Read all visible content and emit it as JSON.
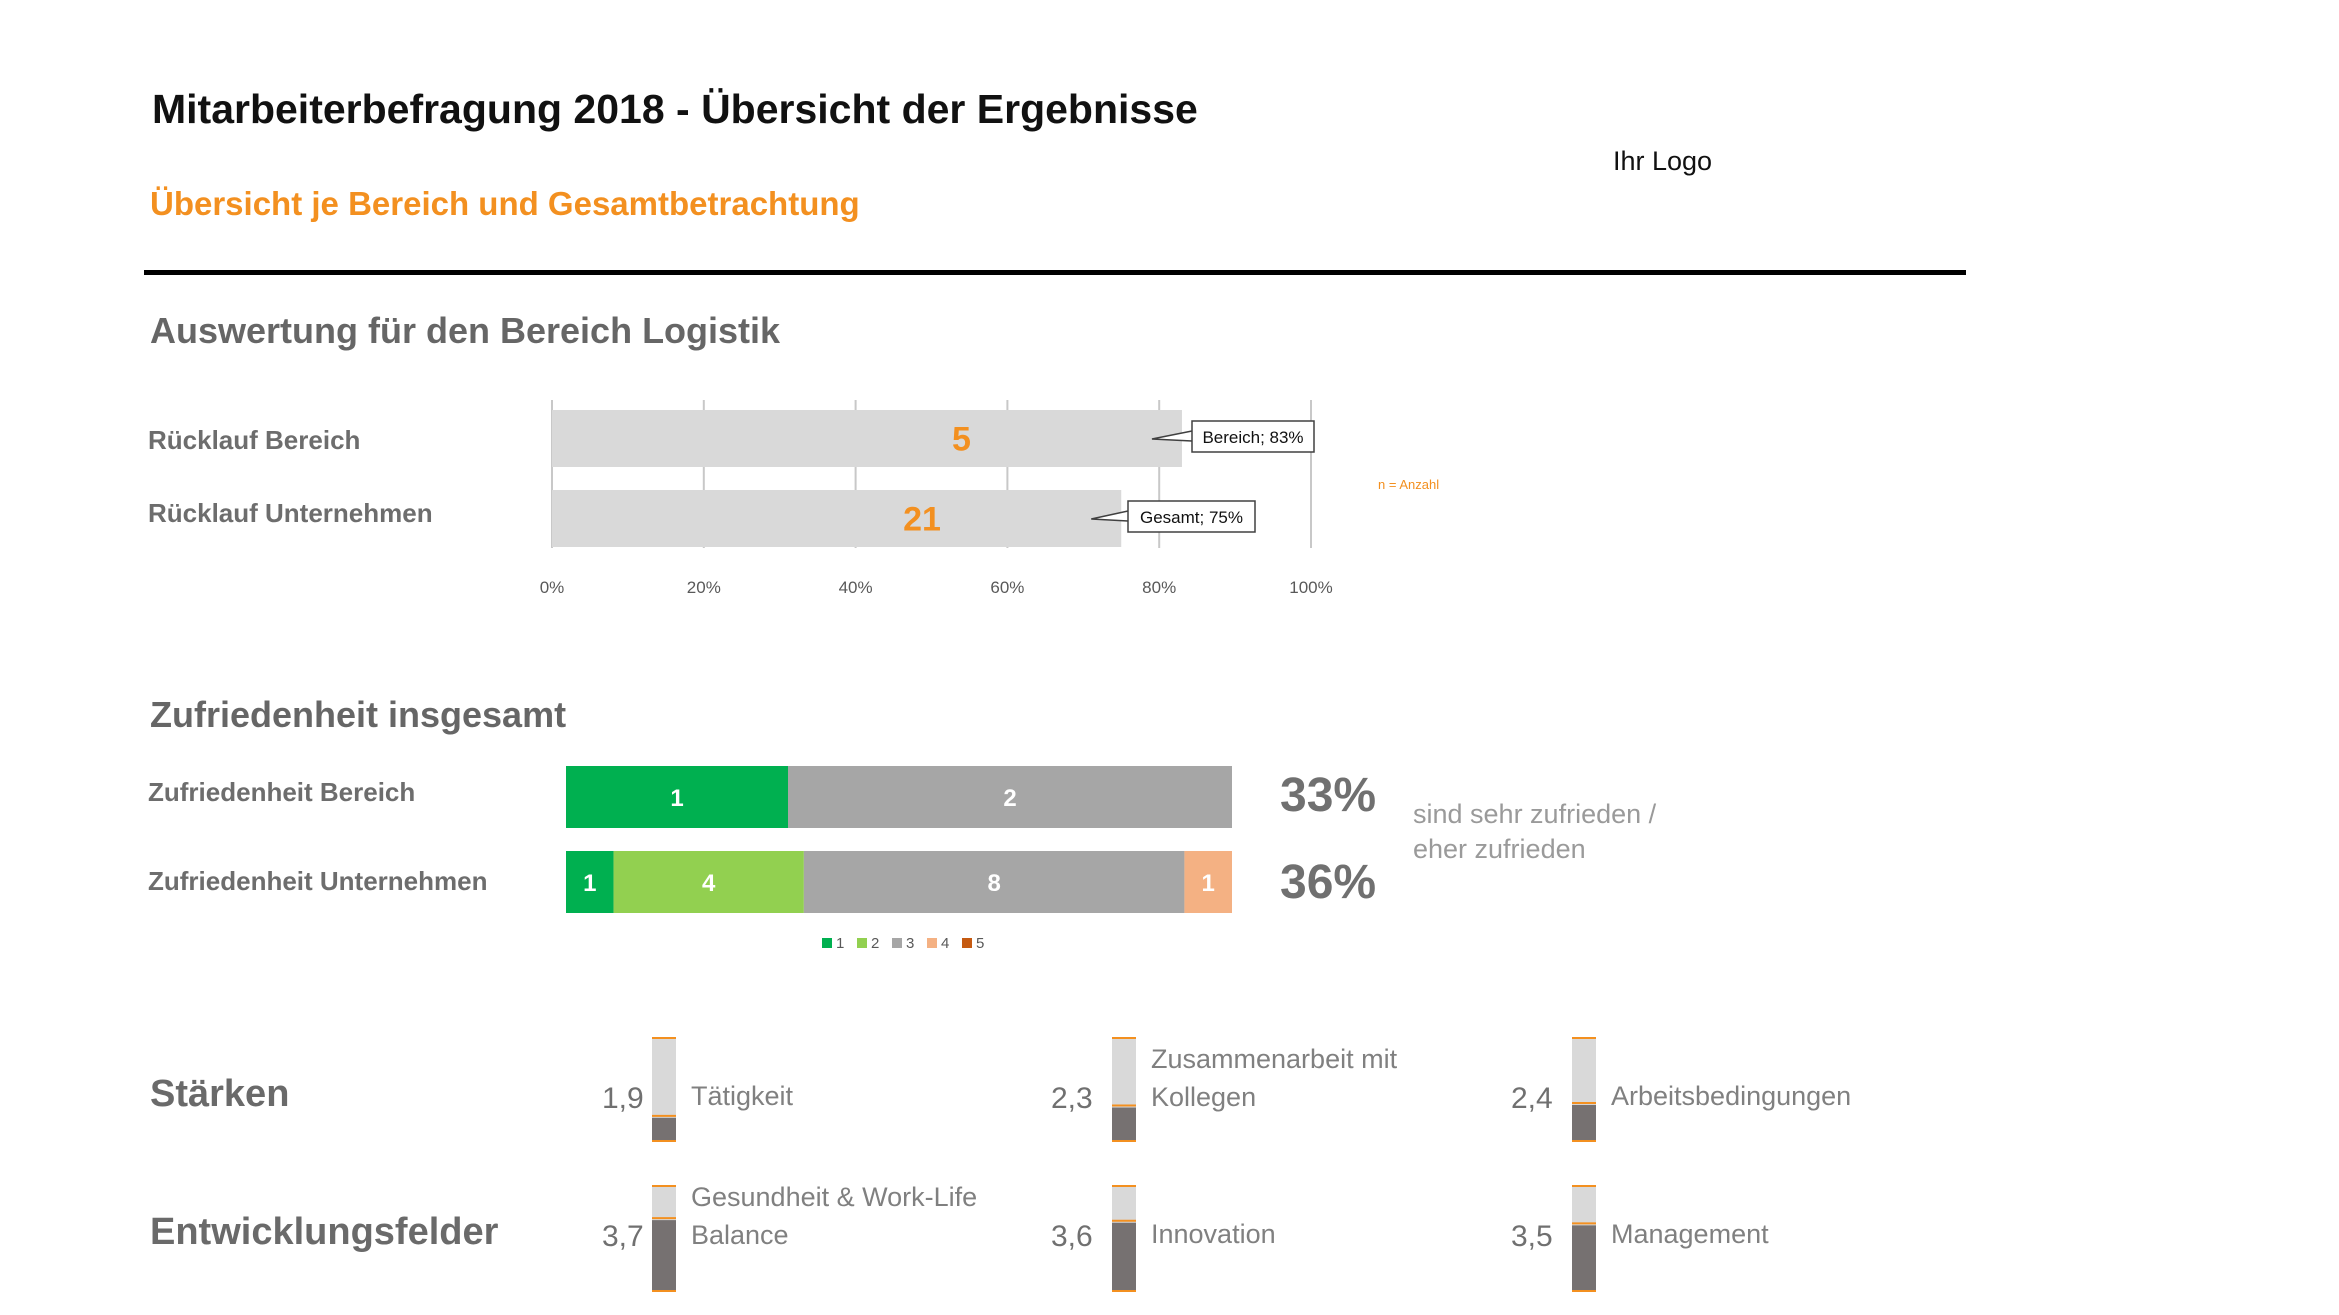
{
  "header": {
    "title": "Mitarbeiterbefragung 2018 - Übersicht der Ergebnisse",
    "subtitle": "Übersicht je Bereich und Gesamtbetrachtung",
    "logo": "Ihr Logo"
  },
  "colors": {
    "accent": "#f39020",
    "bar_grey": "#d9d9d9",
    "s1": "#00b050",
    "s2": "#92d050",
    "s3": "#a6a6a6",
    "s4": "#f4b183",
    "s5": "#c55a11",
    "thermo_fill": "#767171"
  },
  "logistik": {
    "heading": "Auswertung für den Bereich Logistik",
    "row_labels": [
      "Rücklauf Bereich",
      "Rücklauf Unternehmen"
    ],
    "legend_note": "n = Anzahl"
  },
  "satisfaction": {
    "heading": "Zufriedenheit insgesamt",
    "row_labels": [
      "Zufriedenheit Bereich",
      "Zufriedenheit Unternehmen"
    ],
    "pct": [
      "33%",
      "36%"
    ],
    "note_lines": [
      "sind sehr zufrieden /",
      "eher zufrieden"
    ]
  },
  "strengths": {
    "heading": "Stärken",
    "items": [
      {
        "score": "1,9",
        "label_lines": [
          "Tätigkeit"
        ]
      },
      {
        "score": "2,3",
        "label_lines": [
          "Zusammenarbeit mit",
          "Kollegen"
        ]
      },
      {
        "score": "2,4",
        "label_lines": [
          "Arbeitsbedingungen"
        ]
      }
    ]
  },
  "development": {
    "heading": "Entwicklungsfelder",
    "items": [
      {
        "score": "3,7",
        "label_lines": [
          "Gesundheit & Work-Life",
          "Balance"
        ]
      },
      {
        "score": "3,6",
        "label_lines": [
          "Innovation"
        ]
      },
      {
        "score": "3,5",
        "label_lines": [
          "Management"
        ]
      }
    ]
  },
  "chart_data": [
    {
      "type": "bar",
      "orientation": "horizontal",
      "title": "Auswertung für den Bereich Logistik",
      "categories": [
        "Rücklauf Bereich",
        "Rücklauf Unternehmen"
      ],
      "values": [
        83,
        75
      ],
      "counts": [
        "5",
        "21"
      ],
      "callouts": [
        "Bereich; 83%",
        "Gesamt; 75%"
      ],
      "x_ticks": [
        "0%",
        "20%",
        "40%",
        "60%",
        "80%",
        "100%"
      ],
      "xlim": [
        0,
        100
      ],
      "grid": true,
      "note": "n = Anzahl"
    },
    {
      "type": "bar",
      "orientation": "horizontal",
      "stacked": true,
      "title": "Zufriedenheit insgesamt",
      "categories": [
        "Zufriedenheit Bereich",
        "Zufriedenheit Unternehmen"
      ],
      "series": [
        {
          "name": "1",
          "values": [
            1,
            1
          ]
        },
        {
          "name": "2",
          "values": [
            0,
            4
          ]
        },
        {
          "name": "3",
          "values": [
            2,
            8
          ]
        },
        {
          "name": "4",
          "values": [
            0,
            1
          ]
        },
        {
          "name": "5",
          "values": [
            0,
            0
          ]
        }
      ],
      "legend": [
        "1",
        "2",
        "3",
        "4",
        "5"
      ],
      "legend_position": "bottom"
    },
    {
      "type": "bar",
      "title": "Stärken und Entwicklungsfelder",
      "scale": [
        1,
        5
      ],
      "items": [
        {
          "group": "Stärken",
          "label": "Tätigkeit",
          "value": 1.9
        },
        {
          "group": "Stärken",
          "label": "Zusammenarbeit mit Kollegen",
          "value": 2.3
        },
        {
          "group": "Stärken",
          "label": "Arbeitsbedingungen",
          "value": 2.4
        },
        {
          "group": "Entwicklungsfelder",
          "label": "Gesundheit & Work-Life Balance",
          "value": 3.7
        },
        {
          "group": "Entwicklungsfelder",
          "label": "Innovation",
          "value": 3.6
        },
        {
          "group": "Entwicklungsfelder",
          "label": "Management",
          "value": 3.5
        }
      ]
    }
  ]
}
